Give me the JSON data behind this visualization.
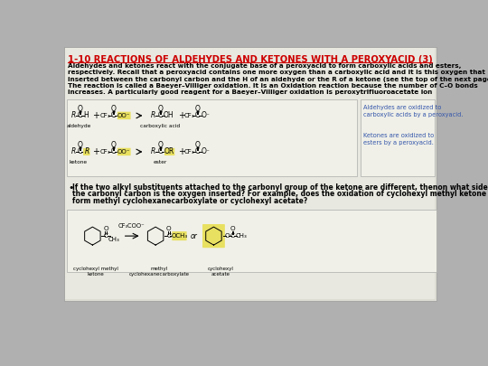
{
  "title": "1-10 REACTIONS OF ALDEHYDES AND KETONES WITH A PEROXYACID (3)",
  "title_color": "#cc0000",
  "slide_bg": "#b0b0b0",
  "content_bg": "#e0e0d8",
  "body_text_lines": [
    "Aldehydes and ketones react with the conjugate base of a peroxyacid to form carboxylic acids and esters,",
    "respectively. Recall that a peroxyacid contains one more oxygen than a carboxylic acid and it is this oxygen that is",
    "inserted between the carbonyl carbon and the H of an aldehyde or the R of a ketone (see the top of the next page)",
    "The reaction is called a Baeyer–Villiger oxidation. It is an Oxidation reaction because the number of C–O bonds",
    "increases. A particularly good reagent for a Baeyer–Villiger oxidation is peroxytrifluoroacetate ion"
  ],
  "bullet_text_lines": [
    "If the two alkyl substituents attached to the carbonyl group of the ketone are different, thenon what side of",
    "the carbonyl carbon is the oxygen inserted? For example, does the oxidation of cyclohexyl methyl ketone",
    "form methyl cyclohexanecarboxylate or cyclohexyl acetate?"
  ],
  "yellow_bg": "#e8e060",
  "note_text_1": "Aldehydes are oxidized to\ncarboxylic acids by a peroxyacid.",
  "note_text_2": "Ketones are oxidized to\nesters by a peroxyacid.",
  "note_color": "#3355aa"
}
